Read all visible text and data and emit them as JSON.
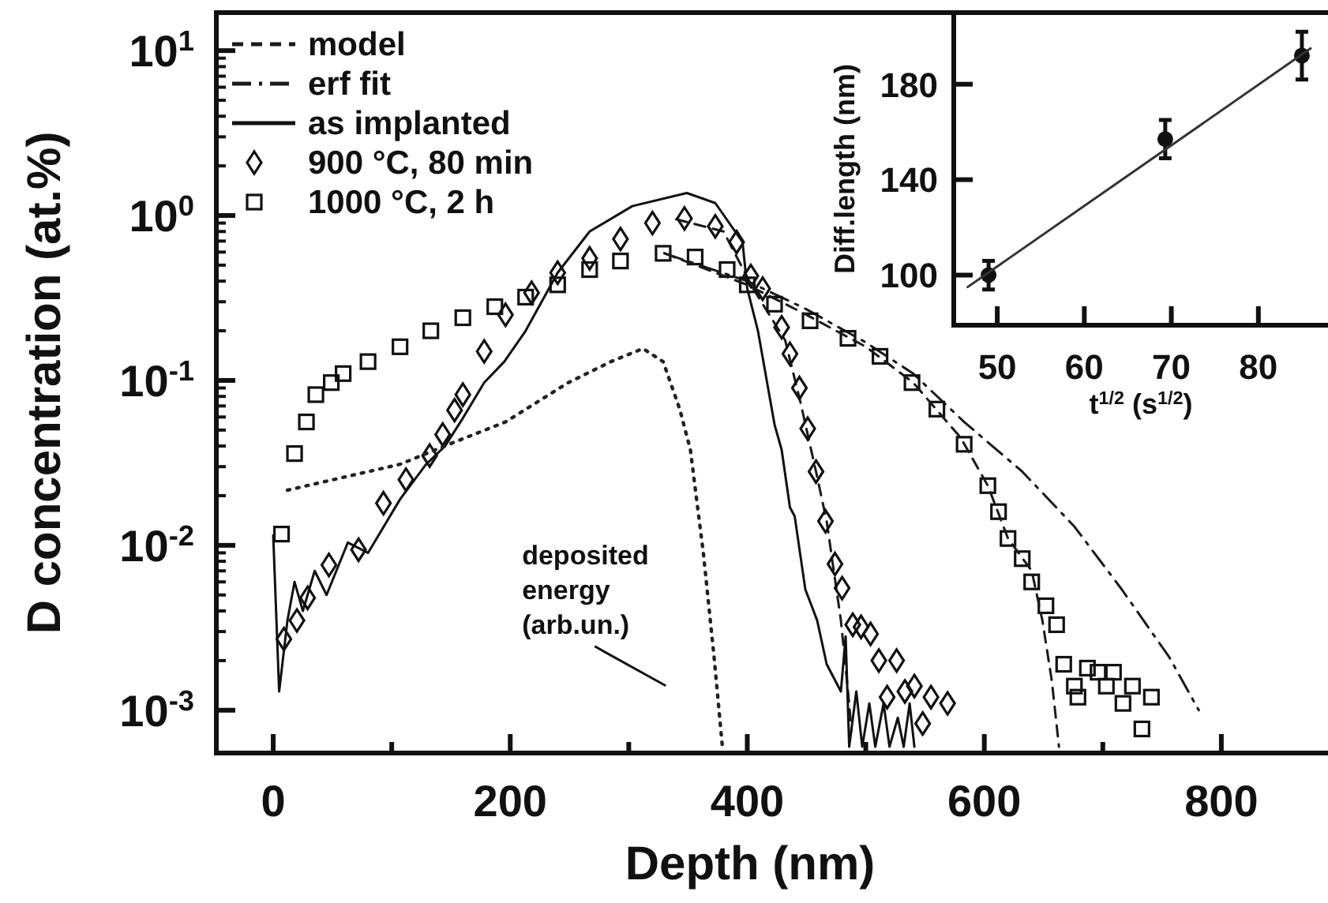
{
  "chart_data": [
    {
      "type": "line",
      "xlabel": "Depth (nm)",
      "ylabel": "D concentration (at.%)",
      "log": true,
      "legend": "top left",
      "xlim": [
        -48,
        890
      ],
      "ylim": [
        0.00055,
        17
      ],
      "xticks": [
        0,
        {
          "value": 100,
          "label": null
        },
        200,
        {
          "value": 300,
          "label": null
        },
        400,
        {
          "value": 500,
          "label": null
        },
        600,
        {
          "value": 700,
          "label": null
        },
        800
      ],
      "yticks": [
        {
          "value": 0.001,
          "label": "10$^{-3}$"
        },
        {
          "value": 0.002,
          "label": null
        },
        {
          "value": 0.003,
          "label": null
        },
        {
          "value": 0.004,
          "label": null
        },
        {
          "value": 0.005,
          "label": null
        },
        {
          "value": 0.006,
          "label": null
        },
        {
          "value": 0.007,
          "label": null
        },
        {
          "value": 0.008,
          "label": null
        },
        {
          "value": 0.009,
          "label": null
        },
        {
          "value": 0.01,
          "label": "10$^{-2}$"
        },
        {
          "value": 0.02,
          "label": null
        },
        {
          "value": 0.03,
          "label": null
        },
        {
          "value": 0.04,
          "label": null
        },
        {
          "value": 0.05,
          "label": null
        },
        {
          "value": 0.06,
          "label": null
        },
        {
          "value": 0.07,
          "label": null
        },
        {
          "value": 0.08,
          "label": null
        },
        {
          "value": 0.09,
          "label": null
        },
        {
          "value": 0.1,
          "label": "10$^{-1}$"
        },
        {
          "value": 0.2,
          "label": null
        },
        {
          "value": 0.3,
          "label": null
        },
        {
          "value": 0.4,
          "label": null
        },
        {
          "value": 0.5,
          "label": null
        },
        {
          "value": 0.6,
          "label": null
        },
        {
          "value": 0.7,
          "label": null
        },
        {
          "value": 0.8,
          "label": null
        },
        {
          "value": 0.9,
          "label": null
        },
        {
          "value": 1,
          "label": "10$^{0}$"
        },
        {
          "value": 2,
          "label": null
        },
        {
          "value": 3,
          "label": null
        },
        {
          "value": 4,
          "label": null
        },
        {
          "value": 5,
          "label": null
        },
        {
          "value": 6,
          "label": null
        },
        {
          "value": 7,
          "label": null
        },
        {
          "value": 8,
          "label": null
        },
        {
          "value": 9,
          "label": null
        },
        {
          "value": 10,
          "label": "10$^{1}$"
        }
      ],
      "annotations": [
        "deposited energy (arb.un.)"
      ],
      "series": [
        {
          "name": "model",
          "line_style": "dashed",
          "color": "#1a1a1a",
          "x": [
            340,
            380,
            405,
            432,
            445,
            458,
            467,
            479,
            485,
            488
          ],
          "values": [
            0.95,
            0.8,
            0.36,
            0.175,
            0.073,
            0.028,
            0.014,
            0.0035,
            0.0013,
            0.00075
          ]
        },
        {
          "name": "erf fit",
          "line_style": "dashdot",
          "color": "#1a1a1a",
          "x": [
            330,
            400,
            450,
            500,
            540,
            583,
            632,
            676,
            716,
            756,
            781
          ],
          "values": [
            0.59,
            0.4,
            0.27,
            0.17,
            0.11,
            0.056,
            0.028,
            0.013,
            0.0054,
            0.0021,
            0.001
          ]
        },
        {
          "name": "as implanted",
          "line_style": "solid",
          "color": "#111111",
          "x": [
            0,
            5,
            12,
            18,
            25,
            35,
            45,
            63,
            80,
            107,
            129,
            145,
            160,
            178,
            195,
            213,
            240,
            267,
            303,
            349,
            373,
            396,
            400,
            409,
            423,
            429,
            436,
            440,
            449,
            459,
            467,
            479,
            483,
            486,
            492,
            497,
            503,
            508,
            515,
            520,
            527,
            532,
            537,
            541
          ],
          "values": [
            0.0115,
            0.0013,
            0.0035,
            0.006,
            0.004,
            0.007,
            0.005,
            0.0104,
            0.009,
            0.019,
            0.031,
            0.04,
            0.059,
            0.097,
            0.13,
            0.2,
            0.45,
            0.8,
            1.14,
            1.37,
            1.19,
            0.69,
            0.36,
            0.2,
            0.054,
            0.038,
            0.017,
            0.015,
            0.0054,
            0.0035,
            0.0019,
            0.0013,
            0.0028,
            0.0006,
            0.0013,
            0.0006,
            0.0011,
            0.0006,
            0.0011,
            0.0006,
            0.0009,
            0.0006,
            0.0011,
            0.0006
          ]
        },
        {
          "name": "900 °C, 80 min",
          "type": "scatter",
          "marker": "diamond",
          "color": "#111111",
          "x": [
            9,
            20,
            29,
            47,
            72,
            93,
            112,
            132,
            143,
            153,
            160,
            178,
            196,
            218,
            240,
            267,
            293,
            320,
            347,
            373,
            391,
            403,
            413,
            429,
            436,
            444,
            451,
            458,
            466,
            474,
            480,
            489,
            496,
            504,
            511,
            518,
            526,
            533,
            541,
            548,
            555,
            569
          ],
          "values": [
            0.0027,
            0.0035,
            0.0048,
            0.0076,
            0.0094,
            0.018,
            0.025,
            0.035,
            0.047,
            0.066,
            0.082,
            0.15,
            0.25,
            0.34,
            0.45,
            0.55,
            0.72,
            0.9,
            0.96,
            0.86,
            0.69,
            0.43,
            0.36,
            0.21,
            0.145,
            0.09,
            0.051,
            0.028,
            0.014,
            0.0077,
            0.0055,
            0.0033,
            0.0032,
            0.0029,
            0.002,
            0.0012,
            0.002,
            0.0013,
            0.0014,
            0.00083,
            0.0012,
            0.0011
          ]
        },
        {
          "name": "1000 °C, 2 h",
          "type": "scatter",
          "marker": "square",
          "color": "#111111",
          "x": [
            7,
            18,
            28,
            36,
            49,
            59,
            80,
            107,
            133,
            160,
            187,
            213,
            240,
            267,
            293,
            329,
            356,
            383,
            400,
            423,
            453,
            485,
            512,
            539,
            560,
            583,
            603,
            612,
            620,
            632,
            640,
            652,
            661,
            667,
            676,
            679,
            687,
            696,
            703,
            709,
            717,
            725,
            733,
            741
          ],
          "values": [
            0.0117,
            0.036,
            0.056,
            0.082,
            0.097,
            0.11,
            0.13,
            0.16,
            0.2,
            0.24,
            0.28,
            0.32,
            0.38,
            0.47,
            0.53,
            0.59,
            0.56,
            0.47,
            0.38,
            0.29,
            0.23,
            0.18,
            0.14,
            0.097,
            0.067,
            0.041,
            0.023,
            0.016,
            0.011,
            0.0083,
            0.006,
            0.0043,
            0.0033,
            0.0019,
            0.0014,
            0.0012,
            0.0018,
            0.0017,
            0.0014,
            0.0017,
            0.0011,
            0.0014,
            0.00077,
            0.0012
          ]
        },
        {
          "line_style": "dashed",
          "color": "#1a1a1a",
          "x": [
            330,
            400,
            450,
            500,
            540,
            580,
            603,
            620,
            640,
            649,
            657,
            663
          ],
          "values": [
            0.59,
            0.38,
            0.25,
            0.16,
            0.097,
            0.045,
            0.023,
            0.011,
            0.007,
            0.0035,
            0.0015,
            0.0006
          ]
        },
        {
          "line_style": "dotted",
          "color": "#222222",
          "x": [
            12,
            107,
            152,
            196,
            249,
            285,
            312,
            329,
            343,
            352,
            363,
            372,
            379
          ],
          "values": [
            0.0216,
            0.031,
            0.042,
            0.056,
            0.097,
            0.13,
            0.156,
            0.13,
            0.067,
            0.038,
            0.0089,
            0.0021,
            0.0006
          ]
        }
      ]
    },
    {
      "type": "scatter",
      "xlabel": "t$^{1/2}$ (s$^{1/2}$)",
      "ylabel": "Diff.length (nm)",
      "xlim": [
        45,
        88
      ],
      "ylim": [
        79,
        210
      ],
      "xticks": [
        50,
        60,
        70,
        80
      ],
      "yticks": [
        100,
        140,
        180
      ],
      "series": [
        {
          "marker": "circle",
          "color": "#111111",
          "x": [
            49,
            69.3,
            85
          ],
          "values": [
            100,
            157,
            192
          ],
          "errors": [
            6,
            8,
            10
          ]
        },
        {
          "type": "line",
          "line_style": "solid",
          "color": "#333333",
          "x": [
            46.6,
            86
          ],
          "values": [
            95,
            195
          ]
        }
      ]
    }
  ]
}
